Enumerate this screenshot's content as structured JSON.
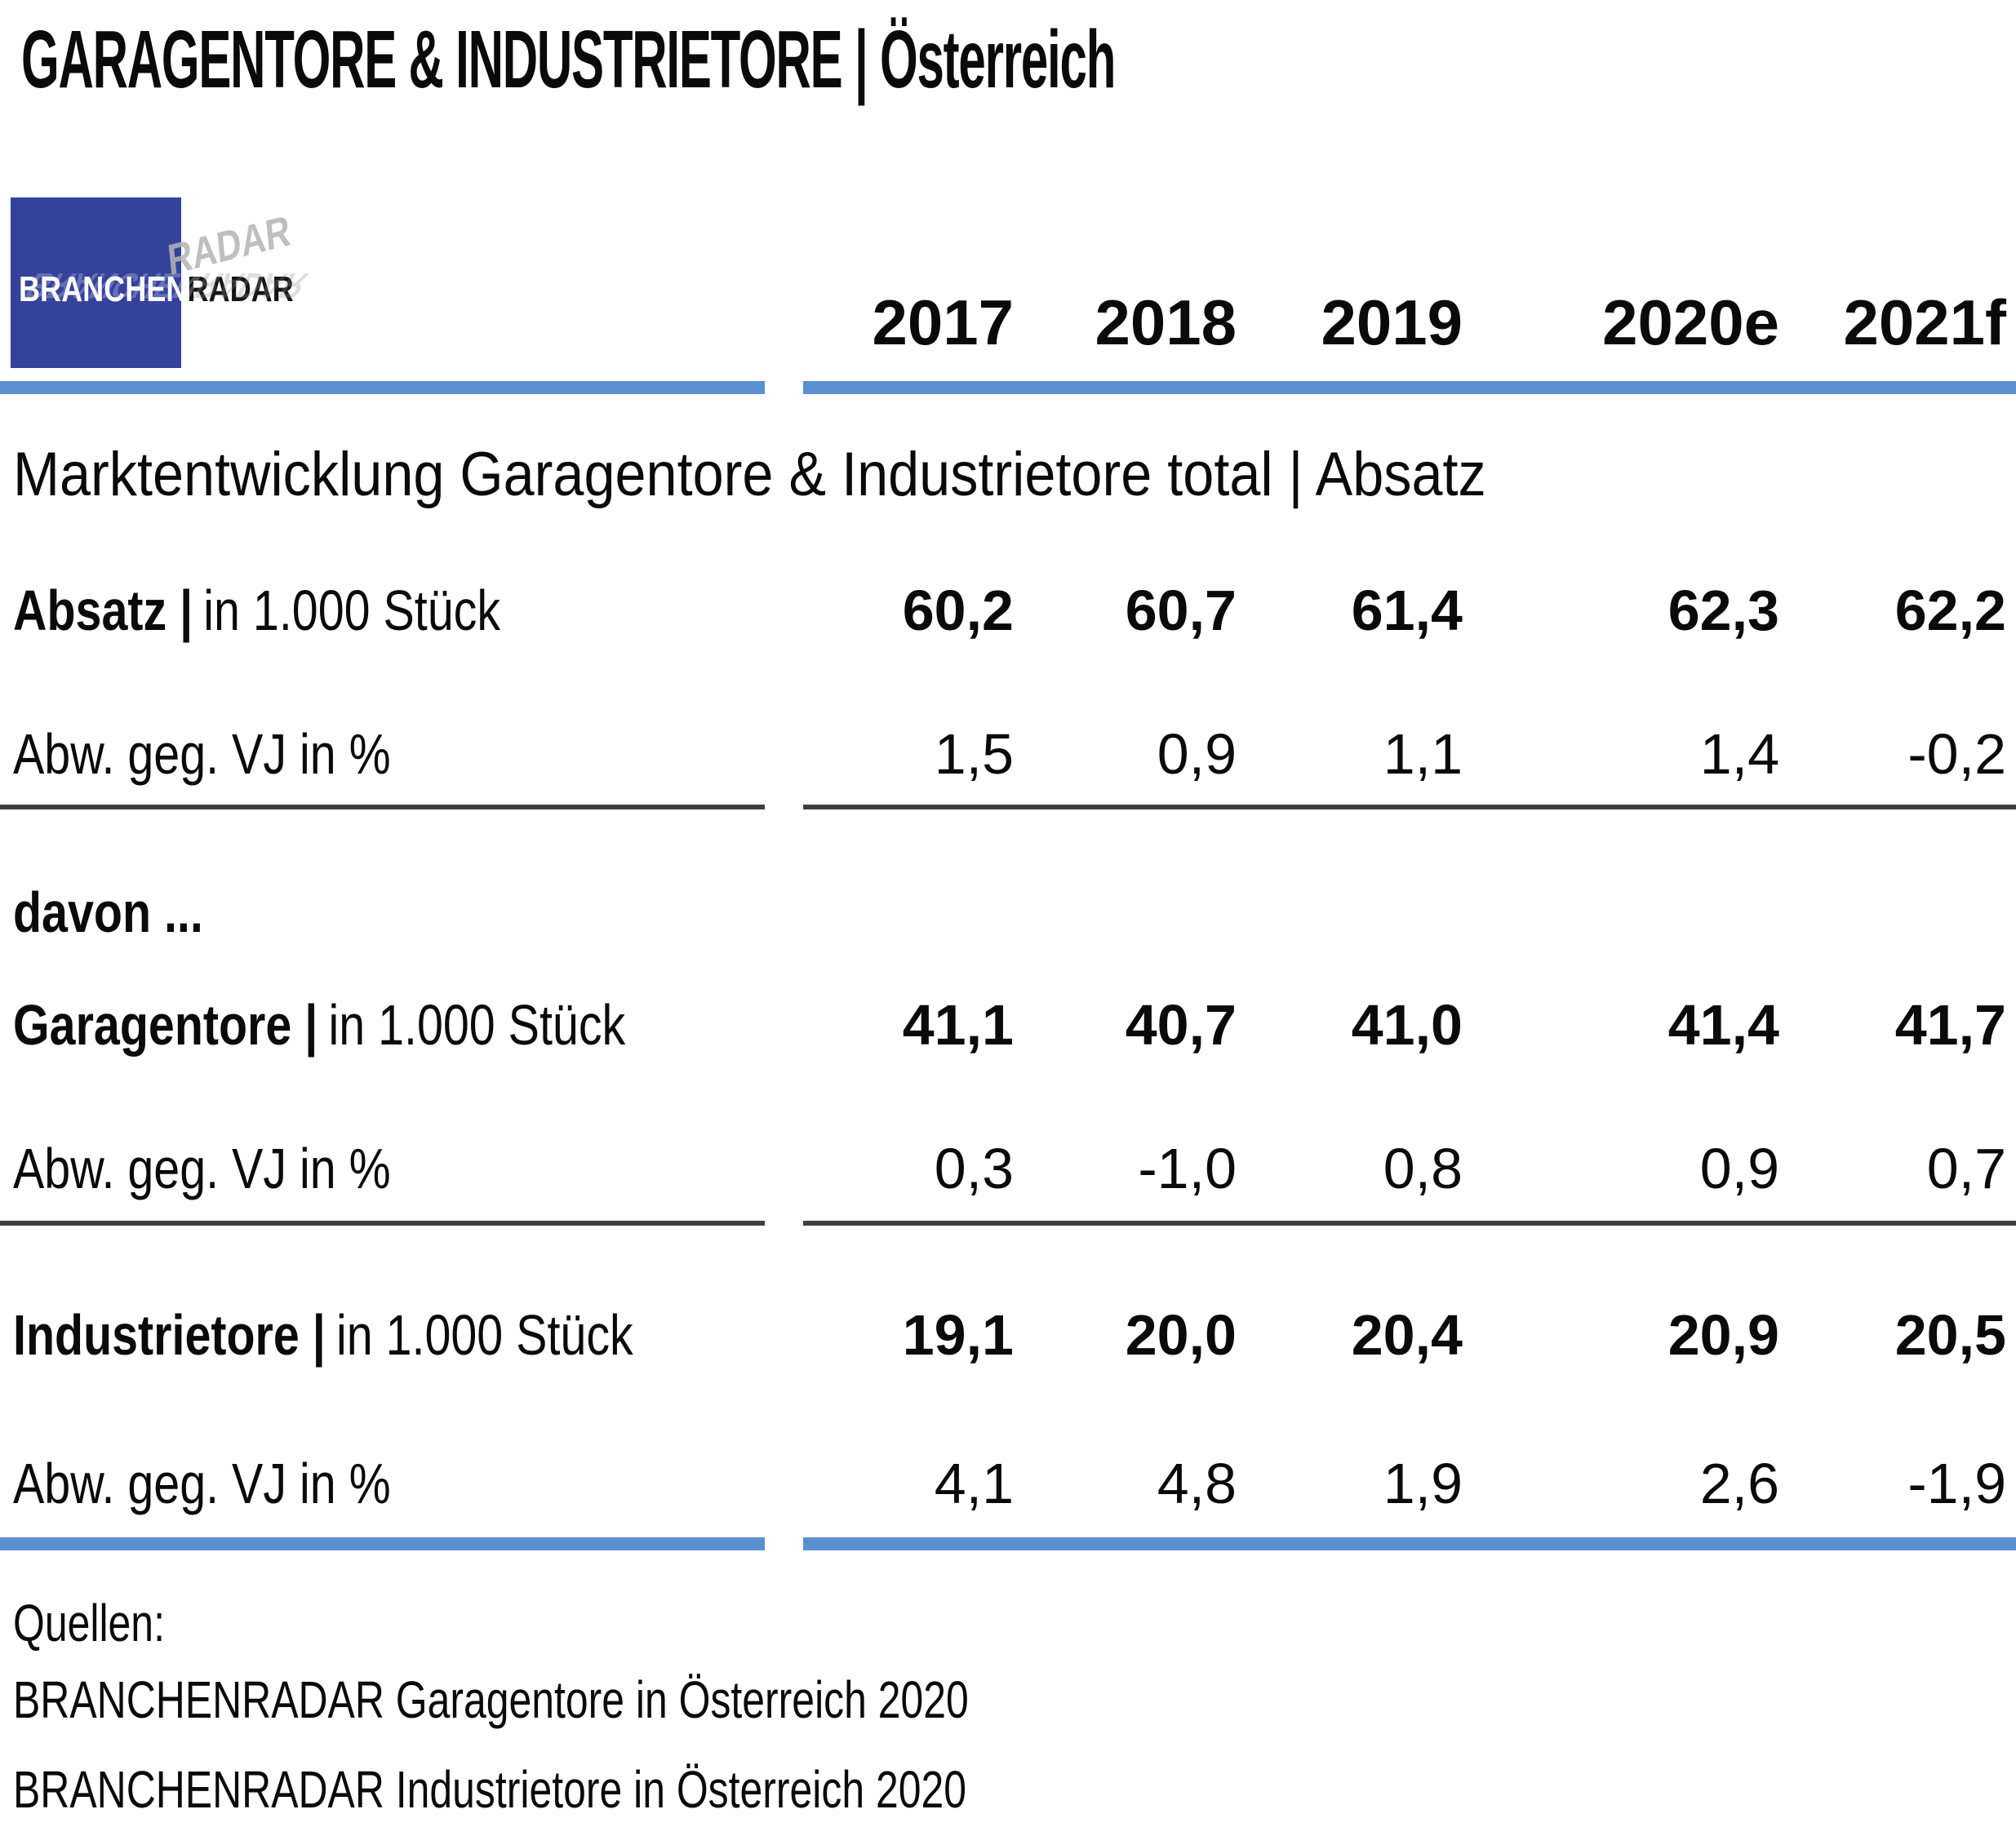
{
  "title": "GARAGENTORE & INDUSTRIETORE | Österreich",
  "logo": {
    "part1": "BRANCHEN",
    "part2": "RADAR"
  },
  "columns": [
    "2017",
    "2018",
    "2019",
    "2020e",
    "2021f"
  ],
  "section_header": "Marktentwicklung Garagentore & Industrietore total | Absatz",
  "table": {
    "rows": [
      {
        "label_bold": "Absatz |",
        "label_rest": "in 1.000 Stück",
        "values": [
          "60,2",
          "60,7",
          "61,4",
          "62,3",
          "62,2"
        ]
      },
      {
        "label_bold": "",
        "label_rest": "Abw. geg. VJ in %",
        "values": [
          "1,5",
          "0,9",
          "1,1",
          "1,4",
          "-0,2"
        ]
      },
      {
        "label_bold": "davon ...",
        "label_rest": "",
        "values": []
      },
      {
        "label_bold": "Garagentore |",
        "label_rest": "in 1.000 Stück",
        "values": [
          "41,1",
          "40,7",
          "41,0",
          "41,4",
          "41,7"
        ]
      },
      {
        "label_bold": "",
        "label_rest": "Abw. geg. VJ in %",
        "values": [
          "0,3",
          "-1,0",
          "0,8",
          "0,9",
          "0,7"
        ]
      },
      {
        "label_bold": "Industrietore |",
        "label_rest": "in 1.000 Stück",
        "values": [
          "19,1",
          "20,0",
          "20,4",
          "20,9",
          "20,5"
        ]
      },
      {
        "label_bold": "",
        "label_rest": "Abw. geg. VJ in %",
        "values": [
          "4,1",
          "4,8",
          "1,9",
          "2,6",
          "-1,9"
        ]
      }
    ]
  },
  "sources": {
    "heading": "Quellen:",
    "items": [
      "BRANCHENRADAR Garagentore in Österreich 2020",
      "BRANCHENRADAR Industrietore in Österreich 2020"
    ]
  },
  "colors": {
    "accent_bar": "#5A8FD2",
    "logo_blue": "#35429B",
    "divider": "#3F3F3F"
  }
}
